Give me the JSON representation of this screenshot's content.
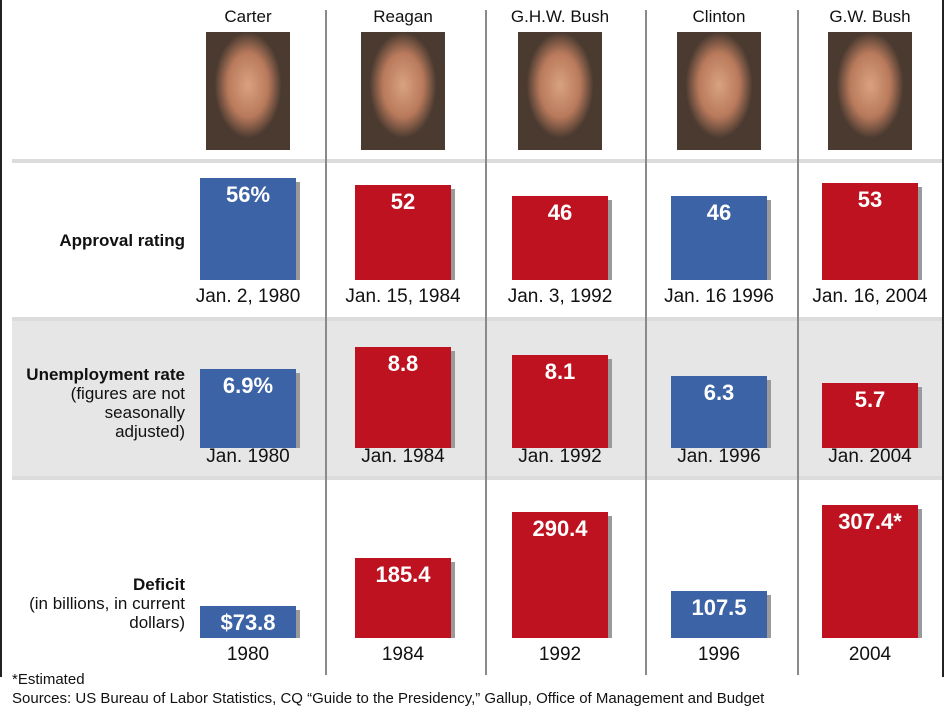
{
  "presidents": [
    "Carter",
    "Reagan",
    "G.H.W. Bush",
    "Clinton",
    "G.W. Bush"
  ],
  "chart_data": [
    {
      "type": "bar",
      "title": "Approval rating",
      "categories": [
        "Jan. 2, 1980",
        "Jan. 15, 1984",
        "Jan. 3, 1992",
        "Jan. 16 1996",
        "Jan. 16, 2004"
      ],
      "values": [
        56,
        52,
        46,
        46,
        53
      ],
      "value_labels": [
        "56%",
        "52",
        "46",
        "46",
        "53"
      ],
      "colors": [
        "#3c63a6",
        "#be1220",
        "#be1220",
        "#3c63a6",
        "#be1220"
      ]
    },
    {
      "type": "bar",
      "title": "Unemployment rate",
      "subtitle": "(figures are not seasonally adjusted)",
      "categories": [
        "Jan. 1980",
        "Jan. 1984",
        "Jan. 1992",
        "Jan. 1996",
        "Jan. 2004"
      ],
      "values": [
        6.9,
        8.8,
        8.1,
        6.3,
        5.7
      ],
      "value_labels": [
        "6.9%",
        "8.8",
        "8.1",
        "6.3",
        "5.7"
      ],
      "colors": [
        "#3c63a6",
        "#be1220",
        "#be1220",
        "#3c63a6",
        "#be1220"
      ]
    },
    {
      "type": "bar",
      "title": "Deficit",
      "subtitle": "(in billions, in current dollars)",
      "categories": [
        "1980",
        "1984",
        "1992",
        "1996",
        "2004"
      ],
      "values": [
        73.8,
        185.4,
        290.4,
        107.5,
        307.4
      ],
      "value_labels": [
        "$73.8",
        "185.4",
        "290.4",
        "107.5",
        "307.4*"
      ],
      "colors": [
        "#3c63a6",
        "#be1220",
        "#be1220",
        "#3c63a6",
        "#be1220"
      ]
    }
  ],
  "footnote": "*Estimated",
  "sources": "Sources: US Bureau of Labor Statistics, CQ “Guide to the Presidency,” Gallup, Office of Management and Budget"
}
